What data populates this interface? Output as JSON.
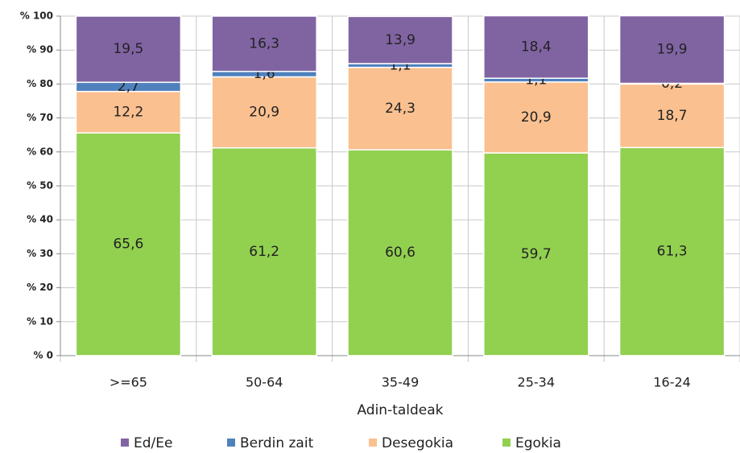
{
  "chart_data": {
    "type": "stacked_bar",
    "x_label": "Adin-taldeak",
    "categories": [
      ">=65",
      "50-64",
      "35-49",
      "25-34",
      "16-24"
    ],
    "series": [
      {
        "name": "Ed/Ee",
        "color": "#8064a2",
        "values": [
          19.5,
          16.3,
          13.9,
          18.4,
          19.9
        ],
        "value_labels": [
          "19,5",
          "16,3",
          "13,9",
          "18,4",
          "19,9"
        ]
      },
      {
        "name": "Berdin zait",
        "color": "#4f81bd",
        "values": [
          2.7,
          1.6,
          1.1,
          1.1,
          0.2
        ],
        "value_labels": [
          "2,7",
          "1,6",
          "1,1",
          "1,1",
          "0,2"
        ]
      },
      {
        "name": "Desegokia",
        "color": "#fac090",
        "values": [
          12.2,
          20.9,
          24.3,
          20.9,
          18.7
        ],
        "value_labels": [
          "12,2",
          "20,9",
          "24,3",
          "20,9",
          "18,7"
        ]
      },
      {
        "name": "Egokia",
        "color": "#92d050",
        "values": [
          65.6,
          61.2,
          60.6,
          59.7,
          61.3
        ],
        "value_labels": [
          "65,6",
          "61,2",
          "60,6",
          "59,7",
          "61,3"
        ]
      }
    ],
    "ylim": [
      0,
      100
    ],
    "yticks": [
      {
        "value": 0,
        "label": "% 0"
      },
      {
        "value": 10,
        "label": "% 10"
      },
      {
        "value": 20,
        "label": "% 20"
      },
      {
        "value": 30,
        "label": "% 30"
      },
      {
        "value": 40,
        "label": "% 40"
      },
      {
        "value": 50,
        "label": "% 50"
      },
      {
        "value": 60,
        "label": "% 60"
      },
      {
        "value": 70,
        "label": "% 70"
      },
      {
        "value": 80,
        "label": "% 80"
      },
      {
        "value": 90,
        "label": "% 90"
      },
      {
        "value": 100,
        "label": "% 100"
      }
    ],
    "grid": true
  }
}
